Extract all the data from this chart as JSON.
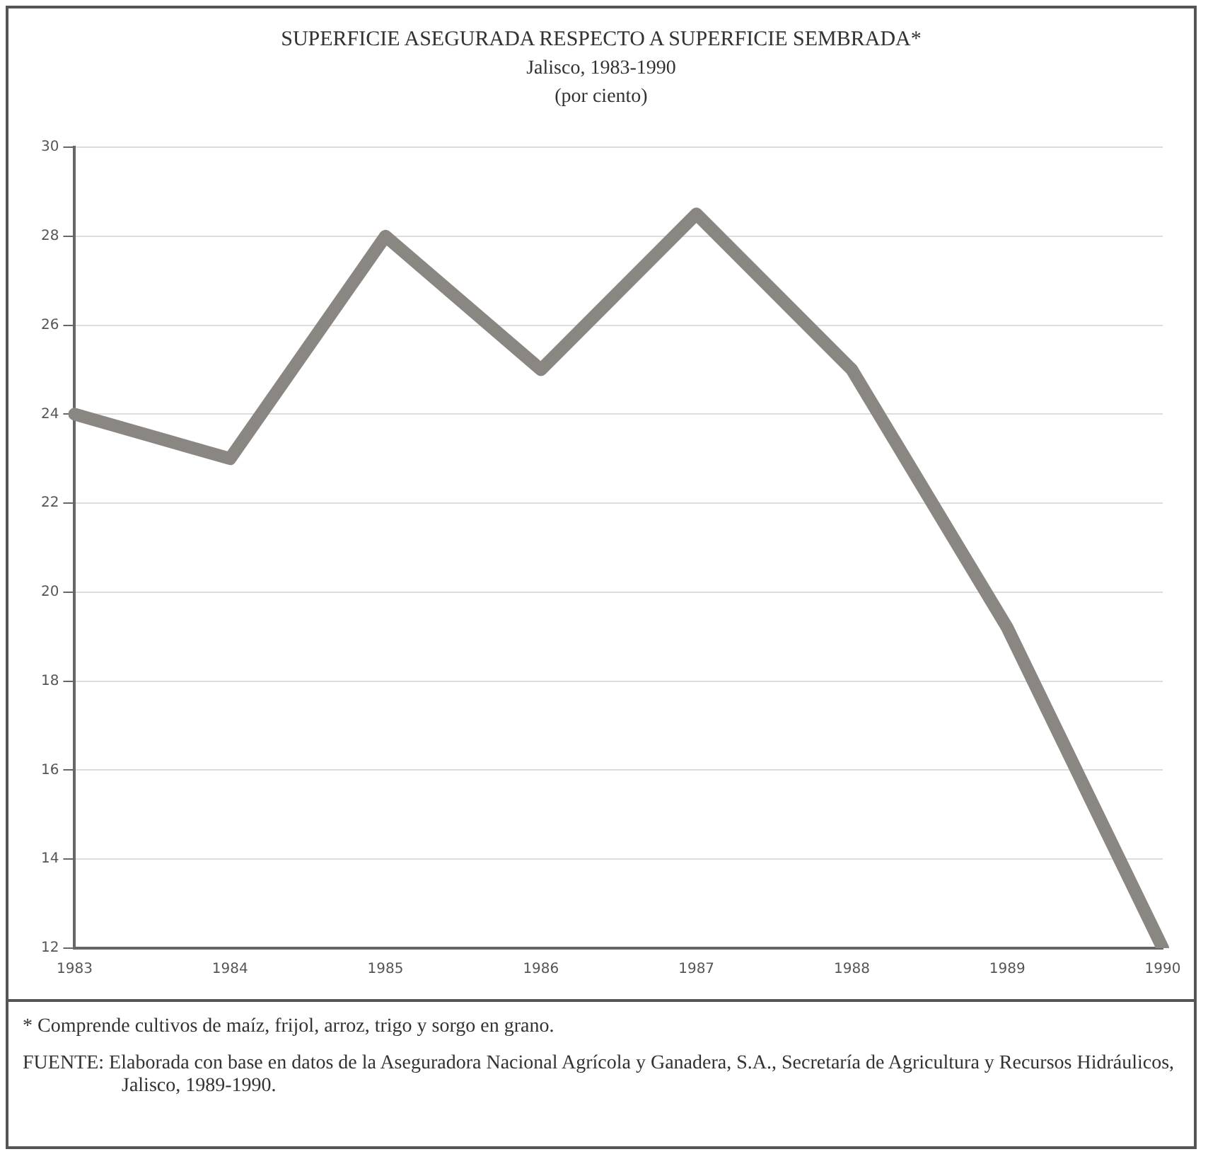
{
  "chart_data": {
    "type": "line",
    "title": "SUPERFICIE ASEGURADA RESPECTO A SUPERFICIE SEMBRADA*",
    "subtitle": "Jalisco, 1983-1990\n(por ciento)",
    "categories": [
      "1983",
      "1984",
      "1985",
      "1986",
      "1987",
      "1988",
      "1989",
      "1990"
    ],
    "series": [
      {
        "color": "#8a8682",
        "values": [
          24,
          23,
          28,
          25,
          28.5,
          25,
          19.2,
          12
        ]
      }
    ],
    "ylim": [
      12,
      30
    ],
    "yticks": [
      12,
      14,
      16,
      18,
      20,
      22,
      24,
      26,
      28,
      30
    ],
    "grid": "y",
    "legend": false,
    "marker": "none",
    "line_style": "solid",
    "annotations": [
      "* Comprende cultivos de maíz, frijol, arroz, trigo y sorgo en grano.",
      "FUENTE: Elaborada con base en datos de la Aseguradora Nacional Agrícola y Ganadera, S.A., Secretaría de Agricultura y Recursos Hidráulicos, Jalisco, 1989-1990."
    ]
  }
}
